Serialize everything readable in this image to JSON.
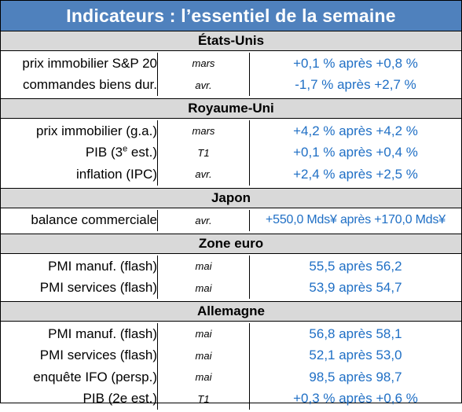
{
  "title": "Indicateurs : l’essentiel de la semaine",
  "sections": [
    {
      "name": "États-Unis",
      "rows": [
        {
          "label": "prix immobilier S&P 20",
          "period": "mars",
          "value": "+0,1 % après +0,8 %"
        },
        {
          "label": "commandes biens dur.",
          "period": "avr.",
          "value": "-1,7 % après +2,7 %"
        }
      ]
    },
    {
      "name": "Royaume-Uni",
      "rows": [
        {
          "label": "prix immobilier (g.a.)",
          "period": "mars",
          "value": "+4,2 % après +4,2 %"
        },
        {
          "label_pre": "PIB (3",
          "label_sup": "e",
          "label_post": " est.)",
          "period": "T1",
          "value": "+0,1 % après +0,4 %"
        },
        {
          "label": "inflation (IPC)",
          "period": "avr.",
          "value": "+2,4 % après +2,5 %"
        }
      ]
    },
    {
      "name": "Japon",
      "rows": [
        {
          "label": "balance commerciale",
          "period": "avr.",
          "value": "+550,0 Mds¥ après +170,0 Mds¥"
        }
      ]
    },
    {
      "name": "Zone euro",
      "rows": [
        {
          "label": "PMI manuf. (flash)",
          "period": "mai",
          "value": "55,5 après 56,2"
        },
        {
          "label": "PMI services (flash)",
          "period": "mai",
          "value": "53,9 après 54,7"
        }
      ]
    },
    {
      "name": "Allemagne",
      "rows": [
        {
          "label": "PMI manuf. (flash)",
          "period": "mai",
          "value": "56,8 après 58,1"
        },
        {
          "label": "PMI services (flash)",
          "period": "mai",
          "value": "52,1 après 53,0"
        },
        {
          "label": "enquête IFO (persp.)",
          "period": "mai",
          "value": "98,5 après 98,7"
        },
        {
          "label": "PIB (2e est.)",
          "period": "T1",
          "value": "+0,3 % après +0,6 %"
        }
      ]
    }
  ],
  "colors": {
    "header_bg": "#4f81bd",
    "section_bg": "#d9d9d9",
    "value_text": "#1f6fc5"
  }
}
